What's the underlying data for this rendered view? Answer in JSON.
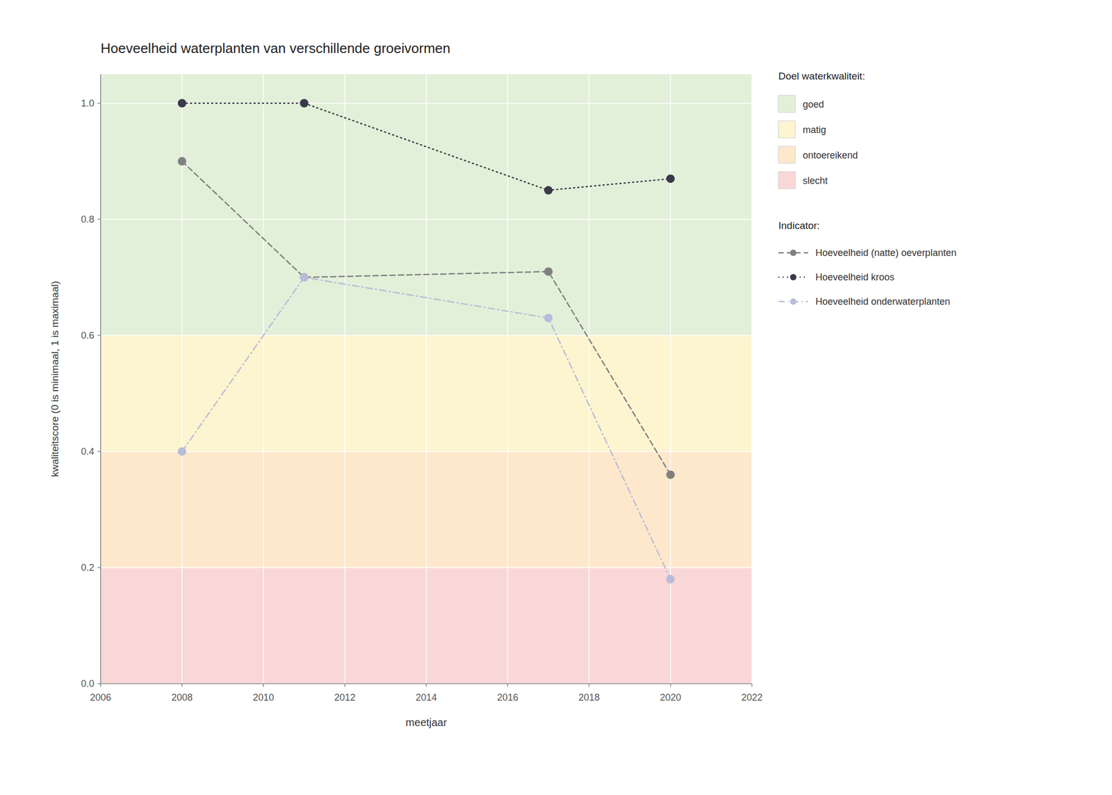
{
  "chart_data": {
    "type": "line",
    "title": "Hoeveelheid waterplanten van verschillende groeivormen",
    "x_label": "meetjaar",
    "y_label": "kwaliteitscore (0 is minimaal, 1 is maximaal)",
    "xlim": [
      2006,
      2022
    ],
    "ylim": [
      0.0,
      1.05
    ],
    "xticks": [
      2006,
      2008,
      2010,
      2012,
      2014,
      2016,
      2018,
      2020,
      2022
    ],
    "yticks": [
      {
        "value": 0.0,
        "label": "0.0"
      },
      0.2,
      0.4,
      0.6,
      0.8,
      {
        "value": 1.0,
        "label": "1.0"
      }
    ],
    "grid": true,
    "legend": "right",
    "x": [
      2008,
      2011,
      2017,
      2020
    ],
    "series": [
      {
        "name": "Hoeveelheid (natte) oeverplanten",
        "values": [
          0.9,
          0.7,
          0.71,
          0.36
        ],
        "color": "#808080",
        "line_style": "dashed",
        "marker": "circle"
      },
      {
        "name": "Hoeveelheid kroos",
        "values": [
          1.0,
          1.0,
          0.85,
          0.87
        ],
        "color": "#3a3a4a",
        "line_style": "dotted",
        "marker": "circle"
      },
      {
        "name": "Hoeveelheid onderwaterplanten",
        "values": [
          0.4,
          0.7,
          0.63,
          0.18
        ],
        "color": "#b8bcd8",
        "line_style": "dashdot",
        "marker": "circle"
      }
    ],
    "zone_legend_title": "Doel waterkwaliteit:",
    "series_legend_title": "Indicator:",
    "zones": [
      {
        "name": "goed",
        "range": [
          0.6,
          1.05
        ],
        "color": "#e2f0d9"
      },
      {
        "name": "matig",
        "range": [
          0.4,
          0.6
        ],
        "color": "#fdf5d0"
      },
      {
        "name": "ontoereikend",
        "range": [
          0.2,
          0.4
        ],
        "color": "#fde8cc"
      },
      {
        "name": "slecht",
        "range": [
          0.0,
          0.2
        ],
        "color": "#f9d7d7"
      }
    ]
  }
}
